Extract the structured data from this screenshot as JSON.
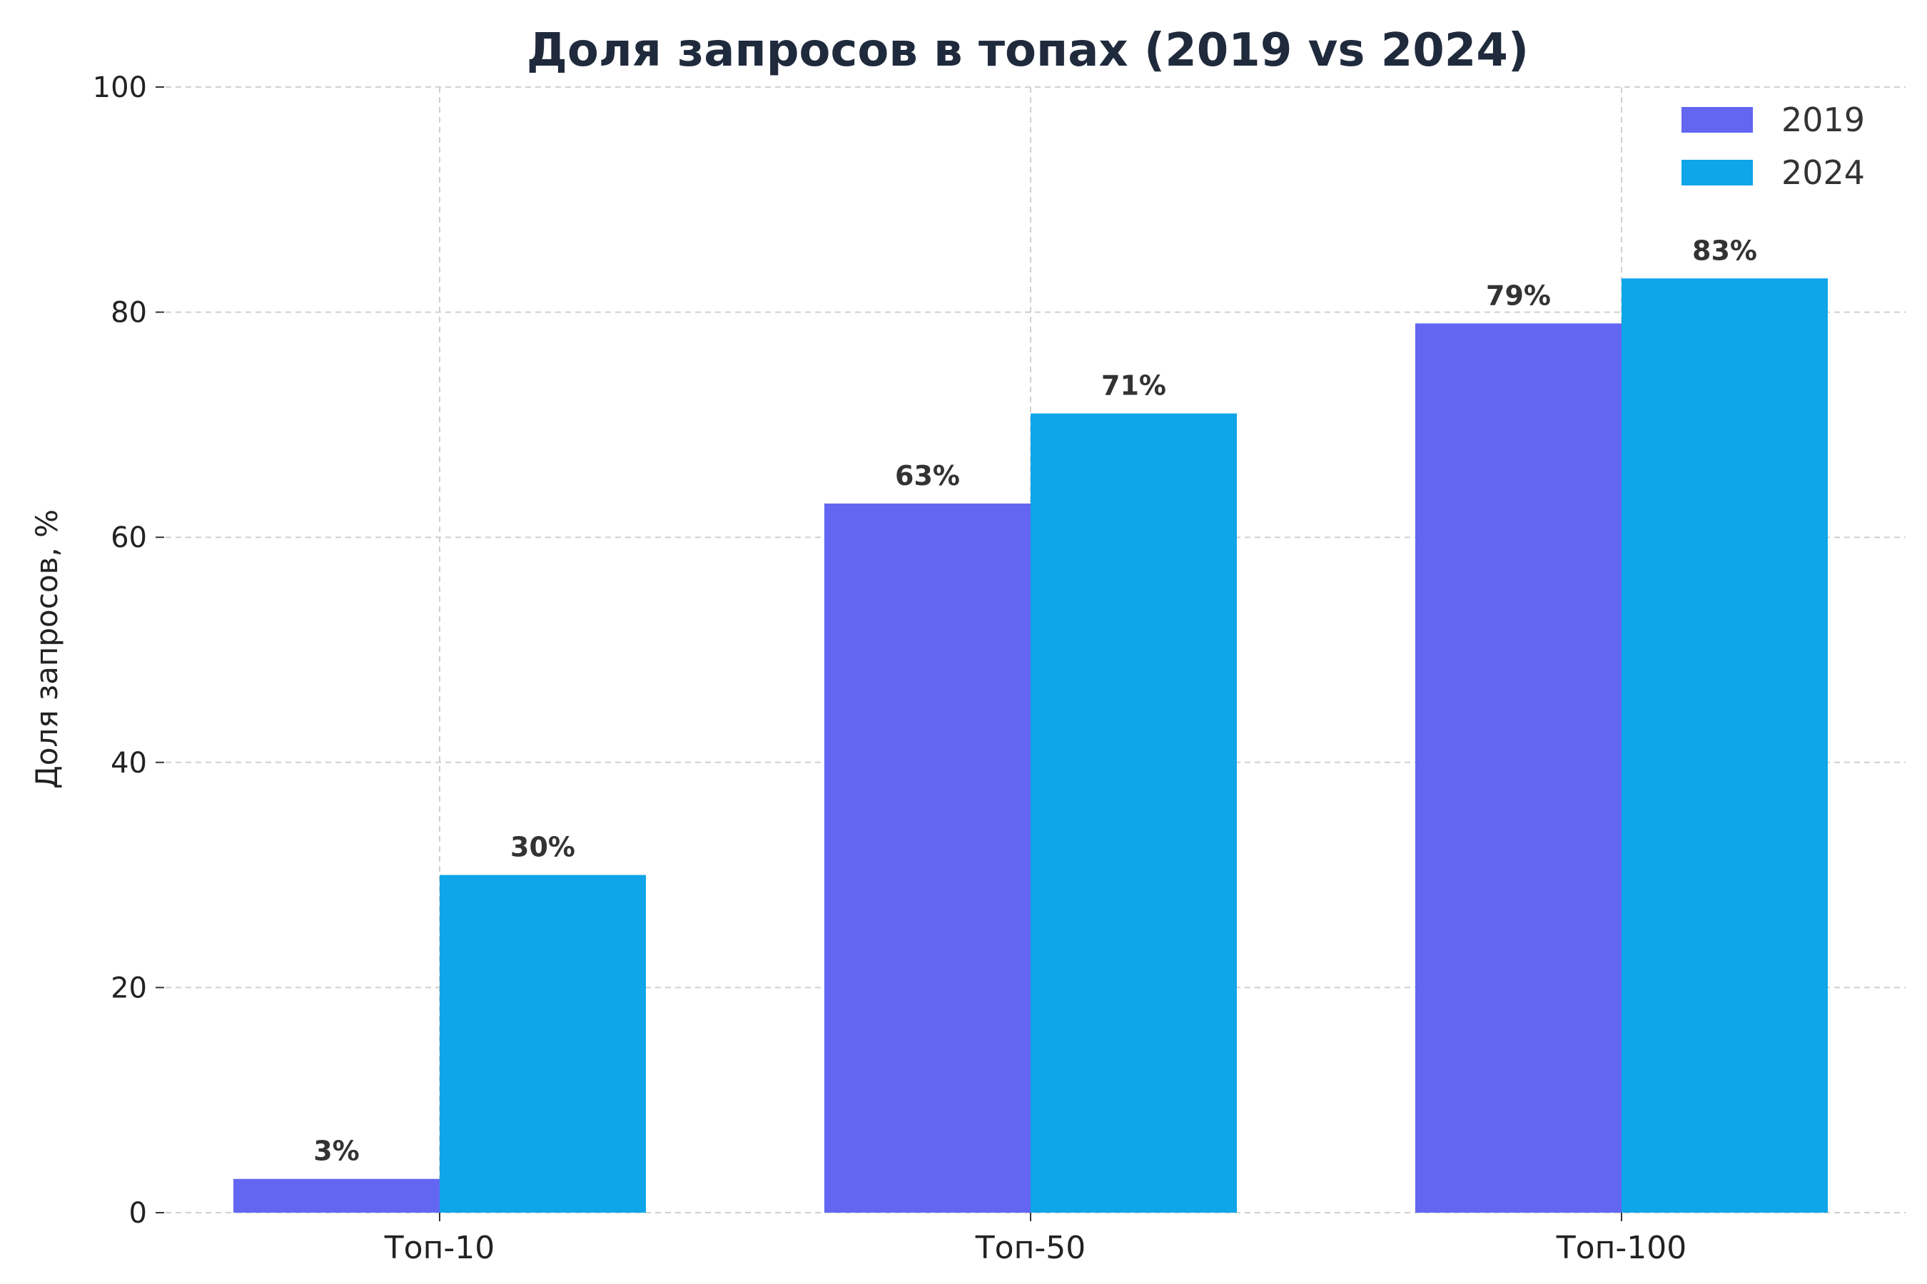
{
  "chart_data": {
    "type": "bar",
    "title": "Доля запросов в топах (2019 vs 2024)",
    "xlabel": "",
    "ylabel": "Доля запросов, %",
    "categories": [
      "Топ-10",
      "Топ-50",
      "Топ-100"
    ],
    "series": [
      {
        "name": "2019",
        "values": [
          3,
          63,
          79
        ],
        "labels": [
          "3%",
          "63%",
          "79%"
        ],
        "color": "#6366f1"
      },
      {
        "name": "2024",
        "values": [
          30,
          71,
          83
        ],
        "labels": [
          "30%",
          "71%",
          "83%"
        ],
        "color": "#0ea5e9"
      }
    ],
    "ylim": [
      0,
      100
    ],
    "yticks": [
      0,
      20,
      40,
      60,
      80,
      100
    ],
    "grid": true,
    "legend_position": "top-right"
  }
}
